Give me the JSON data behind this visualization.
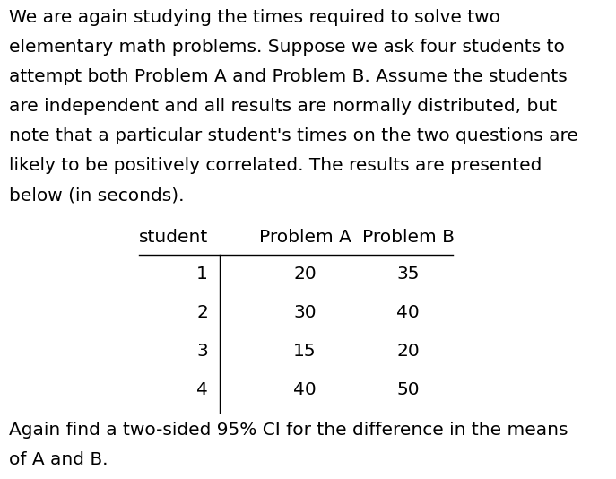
{
  "paragraph_lines": [
    "We are again studying the times required to solve two",
    "elementary math problems. Suppose we ask four students to",
    "attempt both Problem A and Problem B. Assume the students",
    "are independent and all results are normally distributed, but",
    "note that a particular student's times on the two questions are",
    "likely to be positively correlated. The results are presented",
    "below (in seconds)."
  ],
  "table_headers": [
    "student",
    "Problem A",
    "Problem B"
  ],
  "table_data": [
    [
      "1",
      "20",
      "35"
    ],
    [
      "2",
      "30",
      "40"
    ],
    [
      "3",
      "15",
      "20"
    ],
    [
      "4",
      "40",
      "50"
    ]
  ],
  "footer_lines": [
    "Again find a two-sided 95% CI for the difference in the means",
    "of A and B."
  ],
  "font_size": 14.5,
  "table_font_size": 14.5,
  "bg_color": "#ffffff",
  "text_color": "#000000",
  "font_family": "DejaVu Sans"
}
